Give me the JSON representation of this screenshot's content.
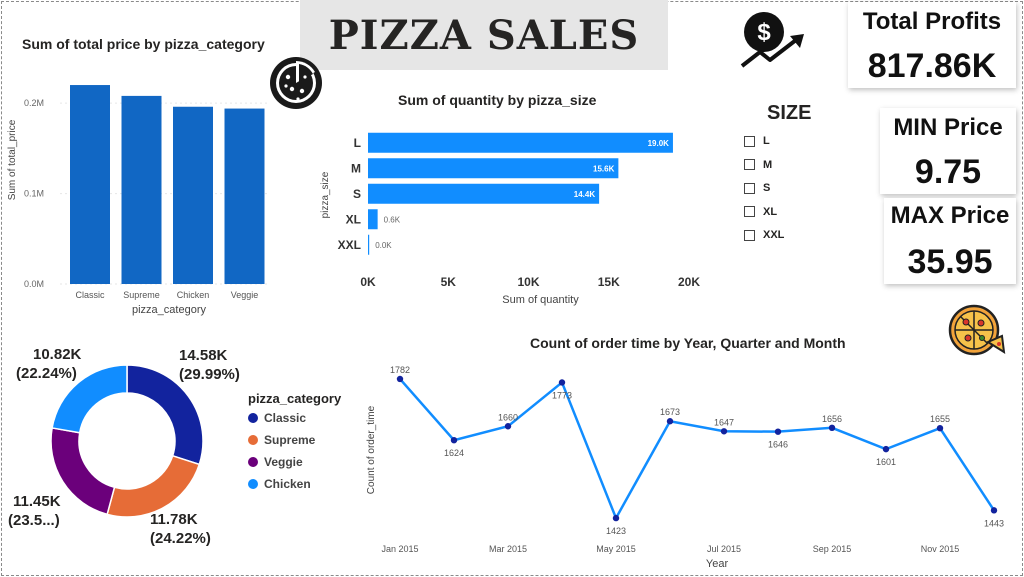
{
  "title": "PIZZA SALES",
  "kpis": [
    {
      "label": "Total Profits",
      "value": "817.86K"
    },
    {
      "label": "MIN Price",
      "value": "9.75"
    },
    {
      "label": "MAX Price",
      "value": "35.95"
    }
  ],
  "slicer": {
    "title": "SIZE",
    "items": [
      "L",
      "M",
      "S",
      "XL",
      "XXL"
    ]
  },
  "icons": {
    "pizza": "pizza-icon",
    "profit": "dollar-growth-icon",
    "pizza_slices": "pizza-slices-icon"
  },
  "colors": {
    "bar_dark": "#1167c4",
    "bar_light": "#118dff",
    "classic": "#12239e",
    "supreme": "#e66c37",
    "veggie": "#6b007b",
    "chicken": "#118dff"
  },
  "chart_data": [
    {
      "type": "bar",
      "title": "Sum of total price by pizza_category",
      "xlabel": "pizza_category",
      "ylabel": "Sum of total_price",
      "categories": [
        "Classic",
        "Supreme",
        "Chicken",
        "Veggie"
      ],
      "values": [
        220000,
        208000,
        196000,
        194000
      ],
      "ylim": [
        0,
        230000
      ],
      "yticks": [
        0,
        100000,
        200000
      ],
      "ytick_labels": [
        "0.0M",
        "0.1M",
        "0.2M"
      ]
    },
    {
      "type": "bar",
      "orientation": "horizontal",
      "title": "Sum of quantity by pizza_size",
      "xlabel": "Sum of quantity",
      "ylabel": "pizza_size",
      "categories": [
        "L",
        "M",
        "S",
        "XL",
        "XXL"
      ],
      "values": [
        19000,
        15600,
        14400,
        600,
        0
      ],
      "data_labels": [
        "19.0K",
        "15.6K",
        "14.4K",
        "0.6K",
        "0.0K"
      ],
      "xlim": [
        0,
        20000
      ],
      "xticks": [
        0,
        5000,
        10000,
        15000,
        20000
      ],
      "xtick_labels": [
        "0K",
        "5K",
        "10K",
        "15K",
        "20K"
      ]
    },
    {
      "type": "pie",
      "variant": "donut",
      "legend_title": "pizza_category",
      "categories": [
        "Classic",
        "Supreme",
        "Veggie",
        "Chicken"
      ],
      "values": [
        14580,
        11780,
        11450,
        10820
      ],
      "labels": [
        [
          "14.58K",
          "(29.99%)"
        ],
        [
          "11.78K",
          "(24.22%)"
        ],
        [
          "11.45K",
          "(23.5...)"
        ],
        [
          "10.82K",
          "(22.24%)"
        ]
      ],
      "legend": "right"
    },
    {
      "type": "line",
      "title": "Count of order time by Year, Quarter and Month",
      "xlabel": "Year",
      "ylabel": "Count of order_time",
      "x": [
        "Jan 2015",
        "Feb 2015",
        "Mar 2015",
        "Apr 2015",
        "May 2015",
        "Jun 2015",
        "Jul 2015",
        "Aug 2015",
        "Sep 2015",
        "Oct 2015",
        "Nov 2015",
        "Dec 2015"
      ],
      "values": [
        1782,
        1624,
        1660,
        1773,
        1423,
        1673,
        1647,
        1646,
        1656,
        1601,
        1655,
        1443
      ],
      "xtick_labels": [
        "Jan 2015",
        "Mar 2015",
        "May 2015",
        "Jul 2015",
        "Sep 2015",
        "Nov 2015"
      ],
      "xtick_index": [
        0,
        2,
        4,
        6,
        8,
        10
      ],
      "label_pos": [
        "top",
        "bottom",
        "top",
        "bottom",
        "bottom",
        "top",
        "top",
        "bottom",
        "top",
        "bottom",
        "top",
        "bottom"
      ],
      "ylim": [
        1400,
        1800
      ]
    }
  ]
}
